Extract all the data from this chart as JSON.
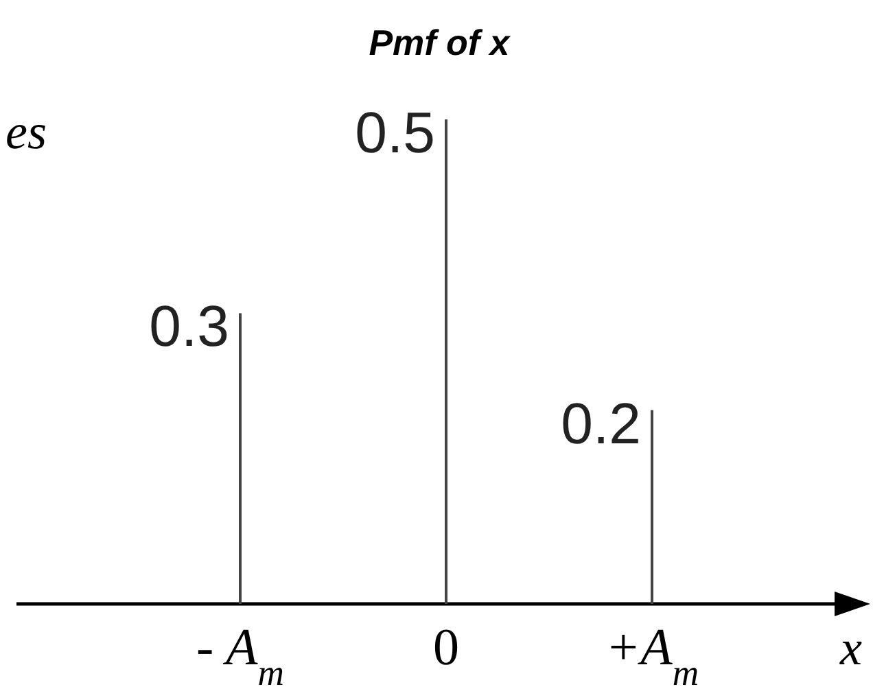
{
  "chart_data": {
    "type": "bar",
    "title": "Pmf of x",
    "xlabel": "x",
    "annotations": [
      "es"
    ],
    "categories": [
      "- A$_{m}$",
      "0",
      "+A$_{m}$"
    ],
    "values": [
      0.3,
      0.5,
      0.2
    ],
    "color": "#444444",
    "data_labels": true
  }
}
